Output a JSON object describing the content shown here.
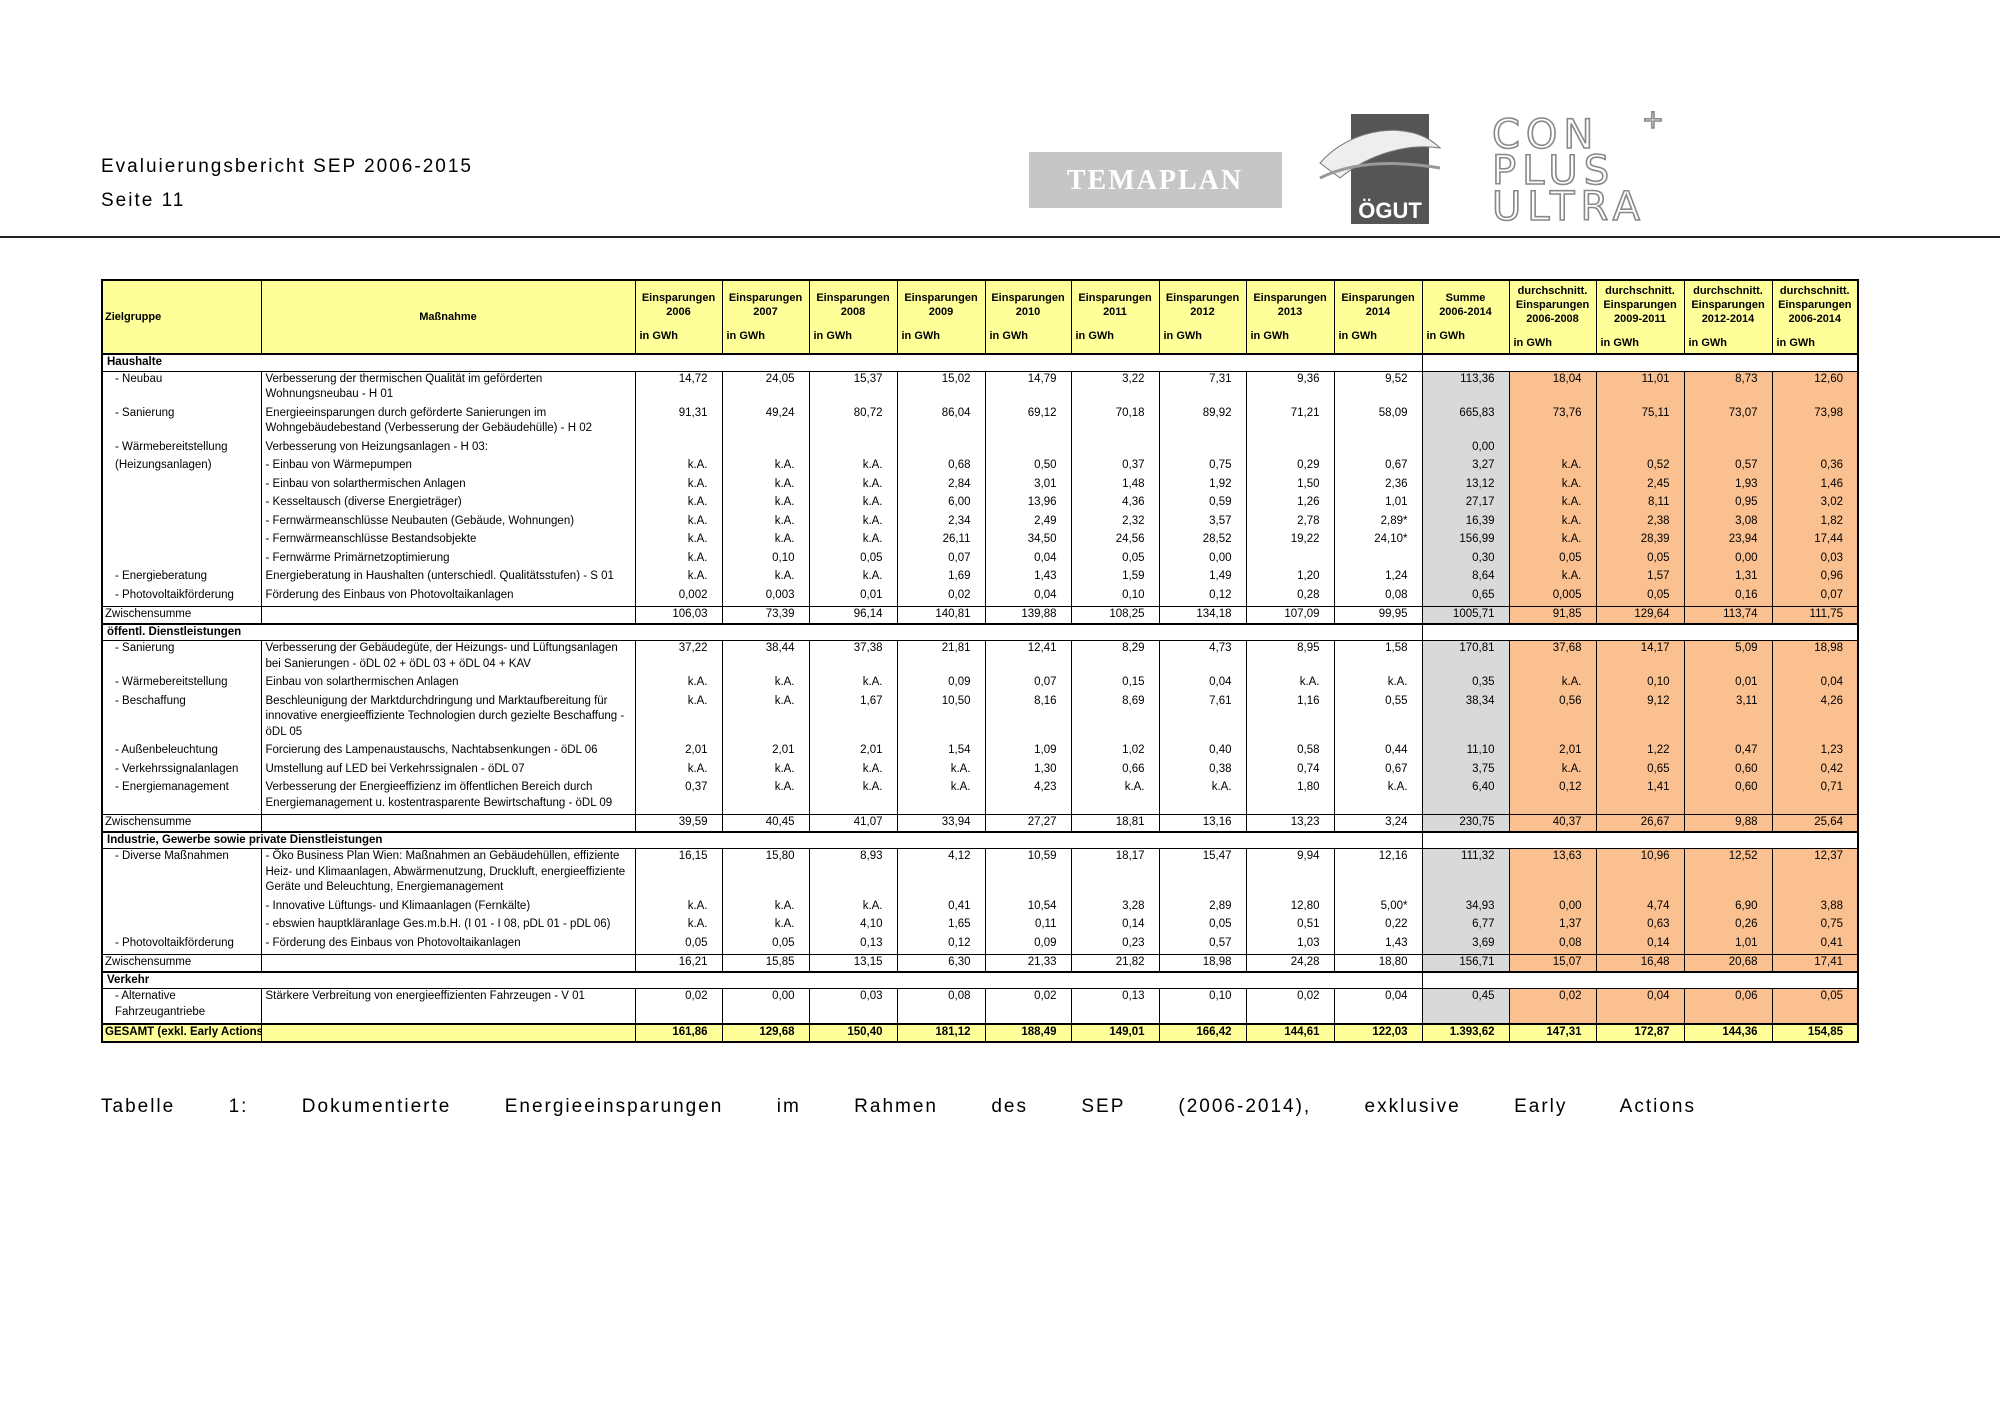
{
  "header": {
    "title": "Evaluierungsbericht SEP 2006-2015",
    "page": "Seite 11",
    "logos": {
      "temaplan": "TEMAPLAN",
      "oegut": "ÖGUT",
      "con": "CON",
      "plus": "PLUS",
      "ultra": "ULTRA",
      "plus_sign": "+"
    }
  },
  "table": {
    "columns": [
      [
        "Zielgruppe"
      ],
      [
        "Maßnahme"
      ],
      [
        "Einsparungen",
        "2006",
        "in GWh"
      ],
      [
        "Einsparungen",
        "2007",
        "in GWh"
      ],
      [
        "Einsparungen",
        "2008",
        "in GWh"
      ],
      [
        "Einsparungen",
        "2009",
        "in GWh"
      ],
      [
        "Einsparungen",
        "2010",
        "in GWh"
      ],
      [
        "Einsparungen",
        "2011",
        "in GWh"
      ],
      [
        "Einsparungen",
        "2012",
        "in GWh"
      ],
      [
        "Einsparungen",
        "2013",
        "in GWh"
      ],
      [
        "Einsparungen",
        "2014",
        "in GWh"
      ],
      [
        "Summe",
        "2006-2014",
        "in GWh"
      ],
      [
        "durchschnitt.",
        "Einsparungen",
        "2006-2008",
        "in GWh"
      ],
      [
        "durchschnitt.",
        "Einsparungen",
        "2009-2011",
        "in GWh"
      ],
      [
        "durchschnitt.",
        "Einsparungen",
        "2012-2014",
        "in GWh"
      ],
      [
        "durchschnitt.",
        "Einsparungen",
        "2006-2014",
        "in GWh"
      ]
    ],
    "sections": [
      {
        "title": "Haushalte",
        "rows": [
          [
            "- Neubau",
            "Verbesserung der thermischen Qualität im geförderten Wohnungsneubau - H 01",
            "14,72",
            "24,05",
            "15,37",
            "15,02",
            "14,79",
            "3,22",
            "7,31",
            "9,36",
            "9,52",
            "113,36",
            "18,04",
            "11,01",
            "8,73",
            "12,60"
          ],
          [
            "- Sanierung",
            "Energieeinsparungen durch geförderte Sanierungen im Wohngebäudebestand (Verbesserung der Gebäudehülle) - H 02",
            "91,31",
            "49,24",
            "80,72",
            "86,04",
            "69,12",
            "70,18",
            "89,92",
            "71,21",
            "58,09",
            "665,83",
            "73,76",
            "75,11",
            "73,07",
            "73,98"
          ],
          [
            "- Wärmebereitstellung",
            "Verbesserung von Heizungsanlagen - H 03:",
            null,
            null,
            null,
            null,
            null,
            null,
            null,
            null,
            null,
            "0,00",
            null,
            null,
            null,
            null
          ],
          [
            "(Heizungsanlagen)",
            "- Einbau von Wärmepumpen",
            "k.A.",
            "k.A.",
            "k.A.",
            "0,68",
            "0,50",
            "0,37",
            "0,75",
            "0,29",
            "0,67",
            "3,27",
            "k.A.",
            "0,52",
            "0,57",
            "0,36"
          ],
          [
            null,
            "- Einbau von solarthermischen Anlagen",
            "k.A.",
            "k.A.",
            "k.A.",
            "2,84",
            "3,01",
            "1,48",
            "1,92",
            "1,50",
            "2,36",
            "13,12",
            "k.A.",
            "2,45",
            "1,93",
            "1,46"
          ],
          [
            null,
            "- Kesseltausch (diverse Energieträger)",
            "k.A.",
            "k.A.",
            "k.A.",
            "6,00",
            "13,96",
            "4,36",
            "0,59",
            "1,26",
            "1,01",
            "27,17",
            "k.A.",
            "8,11",
            "0,95",
            "3,02"
          ],
          [
            null,
            "- Fernwärmeanschlüsse Neubauten (Gebäude, Wohnungen)",
            "k.A.",
            "k.A.",
            "k.A.",
            "2,34",
            "2,49",
            "2,32",
            "3,57",
            "2,78",
            "2,89*",
            "16,39",
            "k.A.",
            "2,38",
            "3,08",
            "1,82"
          ],
          [
            null,
            "- Fernwärmeanschlüsse Bestandsobjekte",
            "k.A.",
            "k.A.",
            "k.A.",
            "26,11",
            "34,50",
            "24,56",
            "28,52",
            "19,22",
            "24,10*",
            "156,99",
            "k.A.",
            "28,39",
            "23,94",
            "17,44"
          ],
          [
            null,
            "- Fernwärme Primärnetzoptimierung",
            "k.A.",
            "0,10",
            "0,05",
            "0,07",
            "0,04",
            "0,05",
            "0,00",
            null,
            null,
            "0,30",
            "0,05",
            "0,05",
            "0,00",
            "0,03"
          ],
          [
            "- Energieberatung",
            "Energieberatung in Haushalten (unterschiedl. Qualitätsstufen) - S 01",
            "k.A.",
            "k.A.",
            "k.A.",
            "1,69",
            "1,43",
            "1,59",
            "1,49",
            "1,20",
            "1,24",
            "8,64",
            "k.A.",
            "1,57",
            "1,31",
            "0,96"
          ],
          [
            "- Photovoltaikförderung",
            "Förderung des Einbaus von Photovoltaikanlagen",
            "0,002",
            "0,003",
            "0,01",
            "0,02",
            "0,04",
            "0,10",
            "0,12",
            "0,28",
            "0,08",
            "0,65",
            "0,005",
            "0,05",
            "0,16",
            "0,07"
          ]
        ],
        "subtotal": [
          "Zwischensumme",
          null,
          "106,03",
          "73,39",
          "96,14",
          "140,81",
          "139,88",
          "108,25",
          "134,18",
          "107,09",
          "99,95",
          "1005,71",
          "91,85",
          "129,64",
          "113,74",
          "111,75"
        ]
      },
      {
        "title": "öffentl. Dienstleistungen",
        "rows": [
          [
            "- Sanierung",
            "Verbesserung der Gebäudegüte, der Heizungs- und Lüftungsanlagen bei Sanierungen - öDL 02 + öDL 03 + öDL 04 + KAV",
            "37,22",
            "38,44",
            "37,38",
            "21,81",
            "12,41",
            "8,29",
            "4,73",
            "8,95",
            "1,58",
            "170,81",
            "37,68",
            "14,17",
            "5,09",
            "18,98"
          ],
          [
            "- Wärmebereitstellung",
            "Einbau von solarthermischen Anlagen",
            "k.A.",
            "k.A.",
            "k.A.",
            "0,09",
            "0,07",
            "0,15",
            "0,04",
            "k.A.",
            "k.A.",
            "0,35",
            "k.A.",
            "0,10",
            "0,01",
            "0,04"
          ],
          [
            "- Beschaffung",
            "Beschleunigung der Marktdurchdringung und Marktaufbereitung für innovative energieeffiziente Technologien durch gezielte Beschaffung - öDL 05",
            "k.A.",
            "k.A.",
            "1,67",
            "10,50",
            "8,16",
            "8,69",
            "7,61",
            "1,16",
            "0,55",
            "38,34",
            "0,56",
            "9,12",
            "3,11",
            "4,26"
          ],
          [
            "- Außenbeleuchtung",
            "Forcierung des Lampenaustauschs, Nachtabsenkungen - öDL 06",
            "2,01",
            "2,01",
            "2,01",
            "1,54",
            "1,09",
            "1,02",
            "0,40",
            "0,58",
            "0,44",
            "11,10",
            "2,01",
            "1,22",
            "0,47",
            "1,23"
          ],
          [
            "- Verkehrssignalanlagen",
            "Umstellung auf LED bei Verkehrssignalen - öDL 07",
            "k.A.",
            "k.A.",
            "k.A.",
            "k.A.",
            "1,30",
            "0,66",
            "0,38",
            "0,74",
            "0,67",
            "3,75",
            "k.A.",
            "0,65",
            "0,60",
            "0,42"
          ],
          [
            "- Energiemanagement",
            "Verbesserung der Energieeffizienz im öffentlichen Bereich durch Energiemanagement u. kostentrasparente Bewirtschaftung - öDL 09",
            "0,37",
            "k.A.",
            "k.A.",
            "k.A.",
            "4,23",
            "k.A.",
            "k.A.",
            "1,80",
            "k.A.",
            "6,40",
            "0,12",
            "1,41",
            "0,60",
            "0,71"
          ]
        ],
        "subtotal": [
          "Zwischensumme",
          null,
          "39,59",
          "40,45",
          "41,07",
          "33,94",
          "27,27",
          "18,81",
          "13,16",
          "13,23",
          "3,24",
          "230,75",
          "40,37",
          "26,67",
          "9,88",
          "25,64"
        ]
      },
      {
        "title": "Industrie, Gewerbe sowie private Dienstleistungen",
        "rows": [
          [
            "- Diverse Maßnahmen",
            "- Öko Business Plan Wien: Maßnahmen an Gebäudehüllen, effiziente Heiz- und Klimaanlagen, Abwärmenutzung, Druckluft, energieeffiziente Geräte und Beleuchtung, Energiemanagement",
            "16,15",
            "15,80",
            "8,93",
            "4,12",
            "10,59",
            "18,17",
            "15,47",
            "9,94",
            "12,16",
            "111,32",
            "13,63",
            "10,96",
            "12,52",
            "12,37"
          ],
          [
            null,
            "- Innovative Lüftungs- und Klimaanlagen (Fernkälte)",
            "k.A.",
            "k.A.",
            "k.A.",
            "0,41",
            "10,54",
            "3,28",
            "2,89",
            "12,80",
            "5,00*",
            "34,93",
            "0,00",
            "4,74",
            "6,90",
            "3,88"
          ],
          [
            null,
            "- ebswien hauptkläranlage Ges.m.b.H. (I 01 - I 08, pDL 01 - pDL 06)",
            "k.A.",
            "k.A.",
            "4,10",
            "1,65",
            "0,11",
            "0,14",
            "0,05",
            "0,51",
            "0,22",
            "6,77",
            "1,37",
            "0,63",
            "0,26",
            "0,75"
          ],
          [
            "- Photovoltaikförderung",
            "- Förderung des Einbaus von Photovoltaikanlagen",
            "0,05",
            "0,05",
            "0,13",
            "0,12",
            "0,09",
            "0,23",
            "0,57",
            "1,03",
            "1,43",
            "3,69",
            "0,08",
            "0,14",
            "1,01",
            "0,41"
          ]
        ],
        "subtotal": [
          "Zwischensumme",
          null,
          "16,21",
          "15,85",
          "13,15",
          "6,30",
          "21,33",
          "21,82",
          "18,98",
          "24,28",
          "18,80",
          "156,71",
          "15,07",
          "16,48",
          "20,68",
          "17,41"
        ]
      },
      {
        "title": "Verkehr",
        "rows": [
          [
            "- Alternative Fahrzeugantriebe",
            "Stärkere Verbreitung von energieeffizienten Fahrzeugen - V 01",
            "0,02",
            "0,00",
            "0,03",
            "0,08",
            "0,02",
            "0,13",
            "0,10",
            "0,02",
            "0,04",
            "0,45",
            "0,02",
            "0,04",
            "0,06",
            "0,05"
          ]
        ]
      }
    ],
    "total": [
      "GESAMT (exkl. Early Actions)",
      null,
      "161,86",
      "129,68",
      "150,40",
      "181,12",
      "188,49",
      "149,01",
      "166,42",
      "144,61",
      "122,03",
      "1.393,62",
      "147,31",
      "172,87",
      "144,36",
      "154,85"
    ]
  },
  "caption": "Tabelle 1: Dokumentierte Energieeinsparungen im Rahmen des SEP (2006-2014), exklusive Early Actions"
}
